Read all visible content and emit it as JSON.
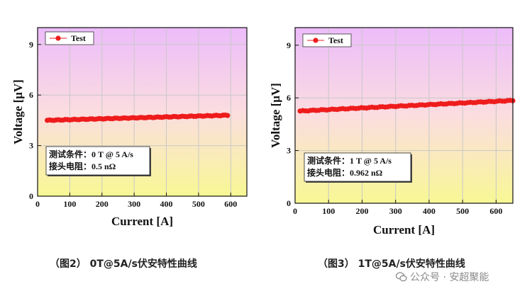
{
  "chart_data": [
    {
      "type": "scatter",
      "xlabel": "Current [A]",
      "ylabel": "Voltage [μV]",
      "xlim": [
        0,
        650
      ],
      "ylim": [
        0,
        10
      ],
      "xticks": [
        0,
        100,
        200,
        300,
        400,
        500,
        600
      ],
      "yticks": [
        0,
        3,
        6,
        9
      ],
      "grid": true,
      "legend": {
        "position": "top-left",
        "entries": [
          "Test"
        ]
      },
      "series": [
        {
          "name": "Test",
          "color": "#ee1c1c",
          "x_range": [
            30,
            590
          ],
          "y_start": 4.5,
          "y_end": 4.8
        }
      ],
      "note_lines": [
        "测试条件：0 T @ 5 A/s",
        "接头电阻：0.5 nΩ"
      ],
      "caption": "（图2） 0T@5A/s伏安特性曲线"
    },
    {
      "type": "scatter",
      "xlabel": "Current [A]",
      "ylabel": "Voltage [μV]",
      "xlim": [
        0,
        650
      ],
      "ylim": [
        0,
        10
      ],
      "xticks": [
        0,
        100,
        200,
        300,
        400,
        500,
        600
      ],
      "yticks": [
        0,
        3,
        6,
        9
      ],
      "grid": true,
      "legend": {
        "position": "top-left",
        "entries": [
          "Test"
        ]
      },
      "series": [
        {
          "name": "Test",
          "color": "#ee1c1c",
          "x_range": [
            15,
            650
          ],
          "y_start": 5.25,
          "y_end": 5.85
        }
      ],
      "note_lines": [
        "测试条件：1 T @ 5 A/s",
        "接头电阻：0.962 nΩ"
      ],
      "caption": "（图3） 1T@5A/s伏安特性曲线"
    }
  ],
  "watermark": {
    "text": "公众号 · 安超聚能",
    "icon": "wechat-icon"
  }
}
